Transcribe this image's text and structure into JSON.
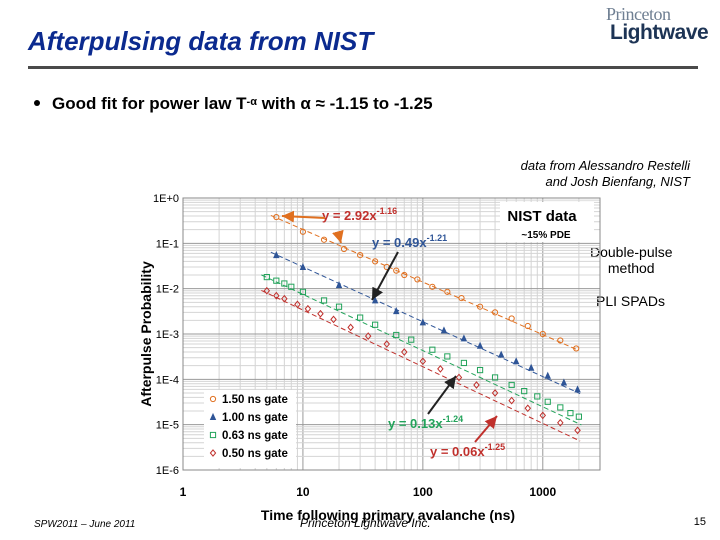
{
  "slide": {
    "title": "Afterpulsing data from NIST",
    "bullet_pre": "Good fit for power law T",
    "bullet_sup": "-α",
    "bullet_post": " with α ≈ -1.15 to -1.25",
    "credit_line1": "data from Alessandro Restelli",
    "credit_line2": "and Josh Bienfang, NIST",
    "side_note1_line1": "Double-pulse",
    "side_note1_line2": "method",
    "side_note2": "PLI SPADs",
    "footer_left": "SPW2011 – June 2011",
    "footer_center": "Princeton Lightwave Inc.",
    "page_number": "15",
    "logo_line1": "Princeton",
    "logo_line2": "Lightwave"
  },
  "chart_data": {
    "type": "scatter",
    "scale": "log-log",
    "xlabel": "Time following primary avalanche (ns)",
    "ylabel": "Afterpulse Probability",
    "xlim": [
      1,
      3000
    ],
    "ylim": [
      1e-06,
      1
    ],
    "x_tick_labels": [
      "1",
      "10",
      "100",
      "1000"
    ],
    "y_tick_labels": [
      "1E-6",
      "1E-5",
      "1E-4",
      "1E-3",
      "1E-2",
      "1E-1",
      "1E+0"
    ],
    "x_tick_values": [
      1,
      10,
      100,
      1000
    ],
    "y_tick_values": [
      1e-06,
      1e-05,
      0.0001,
      0.001,
      0.01,
      0.1,
      1
    ],
    "grid": true,
    "legend_position": "bottom-left",
    "inset_label": "NIST data",
    "inset_sublabel": "~15% PDE",
    "colors": {
      "orange": "#e07020",
      "blue": "#2f5597",
      "green": "#22a35a",
      "red": "#c0302c",
      "fit_green": "#22a35a",
      "fit_blue": "#2f5597"
    },
    "series": [
      {
        "name": "1.50 ns gate",
        "marker": "circle",
        "color": "#e07020",
        "fit": "y = 2.92x^-1.16",
        "fit_a": 2.92,
        "fit_b": -1.16,
        "x": [
          6,
          10,
          15,
          22,
          30,
          40,
          50,
          60,
          70,
          90,
          120,
          160,
          210,
          300,
          400,
          550,
          750,
          1000,
          1400,
          1900
        ],
        "y": [
          0.38,
          0.18,
          0.12,
          0.075,
          0.055,
          0.04,
          0.03,
          0.025,
          0.02,
          0.016,
          0.011,
          0.0085,
          0.0062,
          0.004,
          0.003,
          0.0022,
          0.0015,
          0.001,
          0.00072,
          0.00048
        ]
      },
      {
        "name": "1.00 ns gate",
        "marker": "triangle",
        "color": "#2f5597",
        "fit": "y = 0.49x^-1.21",
        "fit_a": 0.49,
        "fit_b": -1.21,
        "x": [
          6,
          10,
          20,
          40,
          60,
          100,
          150,
          220,
          300,
          450,
          600,
          800,
          1100,
          1500,
          1950
        ],
        "y": [
          0.055,
          0.03,
          0.012,
          0.0055,
          0.0032,
          0.0018,
          0.0012,
          0.0008,
          0.00055,
          0.00035,
          0.00025,
          0.00018,
          0.00012,
          8.5e-05,
          6e-05
        ]
      },
      {
        "name": "0.63 ns gate",
        "marker": "square",
        "color": "#22a35a",
        "fit": "y = 0.13x^-1.24",
        "fit_a": 0.13,
        "fit_b": -1.24,
        "x": [
          5,
          6,
          7,
          8,
          10,
          15,
          20,
          30,
          40,
          60,
          80,
          120,
          160,
          220,
          300,
          400,
          550,
          700,
          900,
          1100,
          1400,
          1700,
          2000
        ],
        "y": [
          0.018,
          0.015,
          0.013,
          0.011,
          0.0085,
          0.0055,
          0.004,
          0.0023,
          0.0016,
          0.00095,
          0.00075,
          0.00045,
          0.00032,
          0.00023,
          0.00016,
          0.00011,
          7.5e-05,
          5.5e-05,
          4.2e-05,
          3.2e-05,
          2.4e-05,
          1.8e-05,
          1.5e-05
        ]
      },
      {
        "name": "0.50 ns gate",
        "marker": "diamond",
        "color": "#c0302c",
        "fit": "y = 0.06x^-1.25",
        "fit_a": 0.06,
        "fit_b": -1.25,
        "x": [
          5,
          6,
          7,
          9,
          11,
          14,
          18,
          25,
          35,
          50,
          70,
          100,
          140,
          200,
          280,
          400,
          550,
          750,
          1000,
          1400,
          1950
        ],
        "y": [
          0.009,
          0.007,
          0.006,
          0.0045,
          0.0036,
          0.0028,
          0.0021,
          0.0014,
          0.0009,
          0.0006,
          0.0004,
          0.00025,
          0.00017,
          0.00011,
          7.5e-05,
          5e-05,
          3.4e-05,
          2.3e-05,
          1.6e-05,
          1.1e-05,
          7.5e-06
        ]
      }
    ],
    "fit_labels": [
      {
        "prefix": "y = 2.92x",
        "exp": "-1.16",
        "color": "#c0302c"
      },
      {
        "prefix": "y = 0.49x",
        "exp": "-1.21",
        "color": "#2f5597"
      },
      {
        "prefix": "y = 0.13x",
        "exp": "-1.24",
        "color": "#22a35a"
      },
      {
        "prefix": "y = 0.06x",
        "exp": "-1.25",
        "color": "#c0302c"
      }
    ]
  }
}
